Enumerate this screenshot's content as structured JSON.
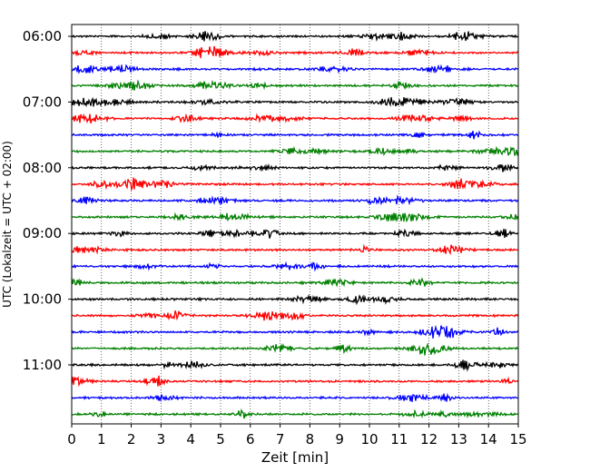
{
  "chart_data": {
    "type": "line",
    "title": "",
    "xlabel": "Zeit  [min]",
    "ylabel": "UTC (Lokalzeit = UTC + 02:00)",
    "xlim": [
      0,
      15
    ],
    "x_ticks": [
      "0",
      "1",
      "2",
      "3",
      "4",
      "5",
      "6",
      "7",
      "8",
      "9",
      "10",
      "11",
      "12",
      "13",
      "14",
      "15"
    ],
    "y_ticks": [
      "06:00",
      "07:00",
      "08:00",
      "09:00",
      "10:00",
      "11:00"
    ],
    "grid": {
      "x": "dotted vertical at each minute",
      "y": "none"
    },
    "trace_interval_minutes": 15,
    "trace_start_times_utc": [
      "06:00",
      "06:15",
      "06:30",
      "06:45",
      "07:00",
      "07:15",
      "07:30",
      "07:45",
      "08:00",
      "08:15",
      "08:30",
      "08:45",
      "09:00",
      "09:15",
      "09:30",
      "09:45",
      "10:00",
      "10:15",
      "10:30",
      "10:45",
      "11:00",
      "11:15",
      "11:30",
      "11:45"
    ],
    "trace_color_cycle": [
      "#000000",
      "#ff0000",
      "#0000ff",
      "#008000"
    ]
  }
}
